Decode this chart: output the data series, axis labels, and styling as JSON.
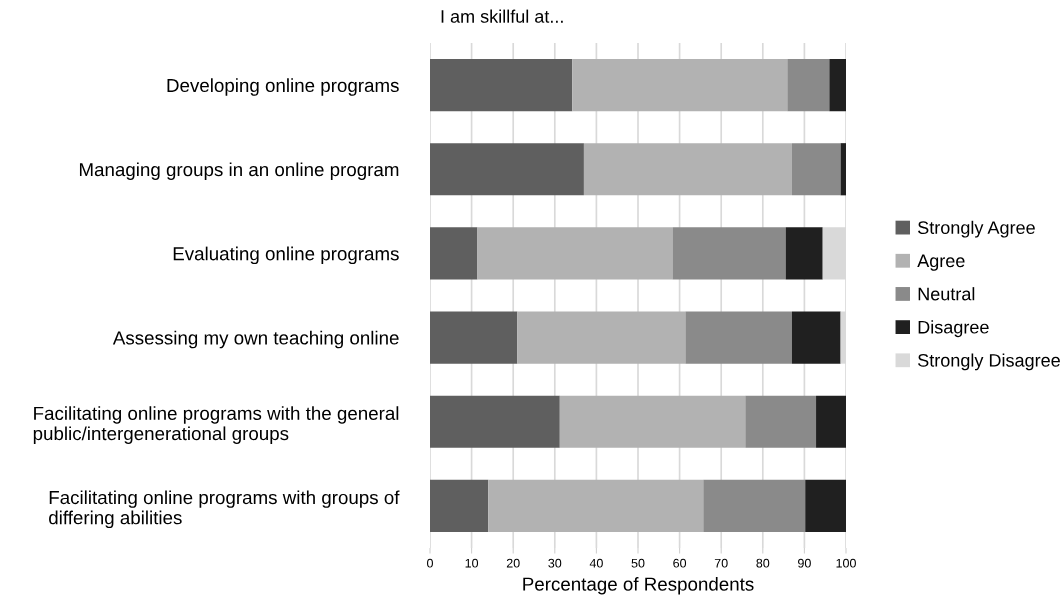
{
  "chart_data": {
    "type": "bar",
    "orientation": "horizontal",
    "stacked": true,
    "title": "I am skillful at...",
    "xlabel": "Percentage of Respondents",
    "categories": [
      "Developing online programs",
      "Managing groups in an online program",
      "Evaluating online programs",
      "Assessing my own teaching online",
      "Facilitating online programs with the general public/intergenerational groups",
      "Facilitating online programs with groups of differing abilities"
    ],
    "series": [
      {
        "name": "Strongly Agree",
        "color": "#5f5f5f",
        "values": [
          34.2,
          37.0,
          11.4,
          21.0,
          31.2,
          14.0
        ]
      },
      {
        "name": "Agree",
        "color": "#b2b2b2",
        "values": [
          51.7,
          50.0,
          46.9,
          40.4,
          44.6,
          51.7
        ]
      },
      {
        "name": "Neutral",
        "color": "#8a8a8a",
        "values": [
          10.1,
          11.7,
          27.2,
          25.6,
          17.0,
          24.5
        ]
      },
      {
        "name": "Disagree",
        "color": "#202020",
        "values": [
          4.0,
          1.3,
          8.9,
          11.7,
          7.2,
          9.8
        ]
      },
      {
        "name": "Strongly Disagree",
        "color": "#d9d9d9",
        "values": [
          0,
          0,
          5.6,
          1.3,
          0,
          0
        ]
      }
    ],
    "xlim": [
      0,
      100
    ],
    "xticks": [
      0,
      10,
      20,
      30,
      40,
      50,
      60,
      70,
      80,
      90,
      100
    ],
    "grid": "x",
    "legend": "right"
  }
}
